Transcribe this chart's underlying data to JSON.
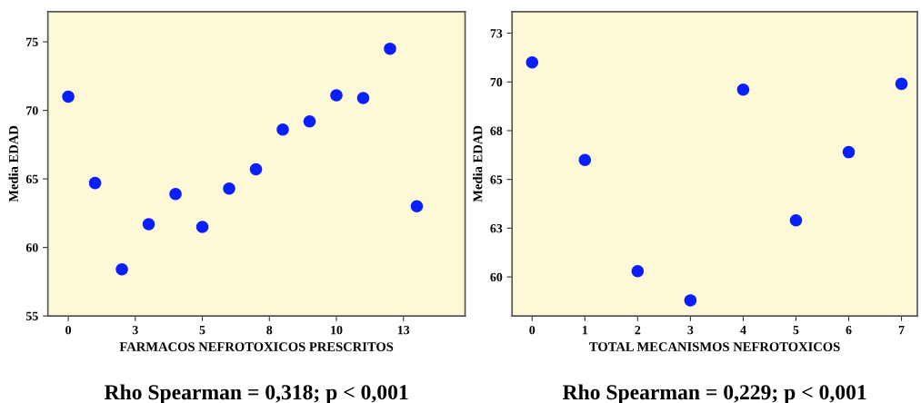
{
  "chart_data": [
    {
      "type": "scatter",
      "xlabel": "FARMACOS NEFROTOXICOS PRESCRITOS",
      "ylabel": "Media EDAD",
      "annotations": [
        "Rho Spearman = 0,318; p < 0,001"
      ],
      "x": [
        0,
        1,
        2,
        3,
        4,
        5,
        6,
        7,
        8,
        9,
        10,
        11,
        12,
        13
      ],
      "series": [
        {
          "color": "#0a1fff",
          "values": [
            71.0,
            64.7,
            58.4,
            61.7,
            63.9,
            61.5,
            64.3,
            65.7,
            68.6,
            69.2,
            71.1,
            70.9,
            74.5,
            63.0
          ]
        }
      ],
      "xlim": [
        -0.76,
        14.8
      ],
      "ylim": [
        55,
        77.2
      ],
      "xticks": [
        0,
        {
          "value": 2.5,
          "label": "3"
        },
        5,
        {
          "value": 7.5,
          "label": "8"
        },
        10,
        {
          "value": 12.5,
          "label": "13"
        }
      ],
      "yticks": [
        55,
        60,
        65,
        70,
        75
      ],
      "grid": false,
      "legend": false,
      "marker": "circle"
    },
    {
      "type": "scatter",
      "xlabel": "TOTAL MECANISMOS NEFROTOXICOS",
      "ylabel": "Media EDAD",
      "annotations": [
        "Rho Spearman = 0,229; p < 0,001"
      ],
      "x": [
        0,
        1,
        2,
        3,
        4,
        5,
        6,
        7
      ],
      "series": [
        {
          "color": "#0a1fff",
          "values": [
            71.0,
            66.0,
            60.3,
            58.8,
            69.6,
            62.9,
            66.4,
            69.9
          ]
        }
      ],
      "xlim": [
        -0.38,
        7.3
      ],
      "ylim": [
        58.0,
        73.6
      ],
      "xticks": [
        0,
        1,
        2,
        3,
        4,
        5,
        6,
        7
      ],
      "yticks": [
        60,
        {
          "value": 62.5,
          "label": "63"
        },
        65,
        {
          "value": 67.5,
          "label": "68"
        },
        70,
        {
          "value": 72.5,
          "label": "73"
        }
      ],
      "grid": false,
      "legend": false,
      "marker": "circle"
    }
  ]
}
